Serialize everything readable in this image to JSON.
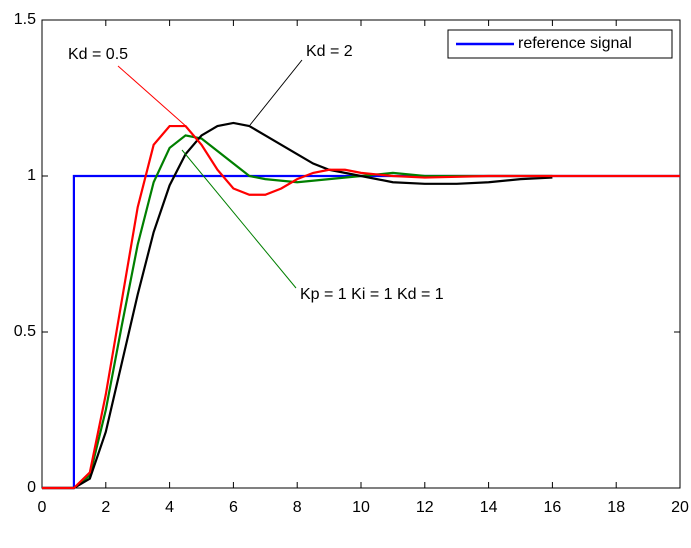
{
  "chart_data": {
    "type": "line",
    "xlim": [
      0,
      20
    ],
    "xticks": [
      0,
      2,
      4,
      6,
      8,
      10,
      12,
      14,
      16,
      18,
      20
    ],
    "ylim": [
      0,
      1.5
    ],
    "yticks": [
      0,
      0.5,
      1,
      1.5
    ],
    "legend": "top-right",
    "series": [
      {
        "name": "reference signal",
        "color": "#0000ff",
        "x": [
          0,
          1,
          1,
          20
        ],
        "values": [
          0,
          0,
          1,
          1
        ]
      },
      {
        "color": "#00007f",
        "x": [],
        "values": []
      },
      {
        "color": "#007f00",
        "x": [
          0,
          1,
          1.5,
          2,
          2.5,
          3,
          3.5,
          4,
          4.5,
          5,
          5.5,
          6,
          6.5,
          7,
          8,
          9,
          10,
          11,
          12,
          14,
          16
        ],
        "values": [
          0,
          0,
          0.04,
          0.25,
          0.52,
          0.78,
          0.98,
          1.09,
          1.13,
          1.12,
          1.08,
          1.04,
          1.0,
          0.99,
          0.98,
          0.99,
          1.0,
          1.01,
          1.0,
          1.0,
          1.0
        ]
      },
      {
        "color": "#000000",
        "x": [
          0,
          1,
          1.5,
          2,
          2.5,
          3,
          3.5,
          4,
          4.5,
          5,
          5.5,
          6,
          6.5,
          7,
          7.5,
          8,
          8.5,
          9,
          10,
          11,
          12,
          13,
          14,
          15,
          16
        ],
        "values": [
          0,
          0,
          0.03,
          0.18,
          0.4,
          0.62,
          0.82,
          0.97,
          1.07,
          1.13,
          1.16,
          1.17,
          1.16,
          1.13,
          1.1,
          1.07,
          1.04,
          1.02,
          1.0,
          0.98,
          0.975,
          0.975,
          0.98,
          0.99,
          0.995
        ]
      },
      {
        "color": "#ff0000",
        "x": [
          0,
          1,
          1.5,
          2,
          2.5,
          3,
          3.5,
          4,
          4.5,
          5,
          5.5,
          6,
          6.5,
          7,
          7.5,
          8,
          8.5,
          9,
          9.5,
          10,
          11,
          12,
          14,
          20
        ],
        "values": [
          0,
          0,
          0.05,
          0.3,
          0.6,
          0.9,
          1.1,
          1.16,
          1.16,
          1.1,
          1.02,
          0.96,
          0.94,
          0.94,
          0.96,
          0.99,
          1.01,
          1.02,
          1.02,
          1.01,
          1.0,
          0.995,
          1.0,
          1.0
        ]
      }
    ],
    "annotations": [
      "Kd = 0.5",
      "Kd = 2",
      "Kp = 1  Ki = 1  Kd = 1"
    ]
  }
}
